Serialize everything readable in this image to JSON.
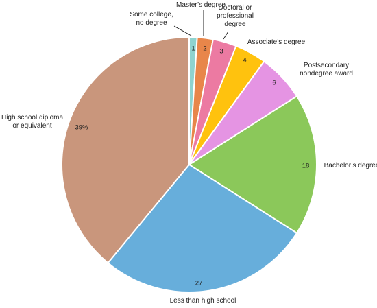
{
  "chart_data": {
    "type": "pie",
    "title": "",
    "start_angle_deg": 0,
    "direction": "clockwise",
    "slices": [
      {
        "category": "Some college, no degree",
        "value": 1,
        "value_label": "1",
        "color": "#8fd3cf"
      },
      {
        "category": "Master’s degree",
        "value": 2,
        "value_label": "2",
        "color": "#e8864a"
      },
      {
        "category": "Doctoral or professional degree",
        "value": 3,
        "value_label": "3",
        "color": "#ec7aa2"
      },
      {
        "category": "Associate’s degree",
        "value": 4,
        "value_label": "4",
        "color": "#ffc20e"
      },
      {
        "category": "Postsecondary nondegree award",
        "value": 6,
        "value_label": "6",
        "color": "#e594e3"
      },
      {
        "category": "Bachelor’s degree",
        "value": 18,
        "value_label": "18",
        "color": "#8bc85a"
      },
      {
        "category": "Less than high school",
        "value": 27,
        "value_label": "27",
        "color": "#67aedb"
      },
      {
        "category": "High school diploma or equivalent",
        "value": 39,
        "value_label": "39%",
        "color": "#c9967c"
      }
    ],
    "category_label_lines": [
      [
        "Some college,",
        "no degree"
      ],
      [
        "Master’s degree"
      ],
      [
        "Doctoral or",
        "professional",
        "degree"
      ],
      [
        "Associate’s degree"
      ],
      [
        "Postsecondary",
        "nondegree award"
      ],
      [
        "Bachelor’s degree"
      ],
      [
        "Less than high school"
      ],
      [
        "High school diploma",
        "or equivalent"
      ]
    ],
    "legend": "none",
    "label_style": "category labels outside with leader lines, values inside"
  }
}
